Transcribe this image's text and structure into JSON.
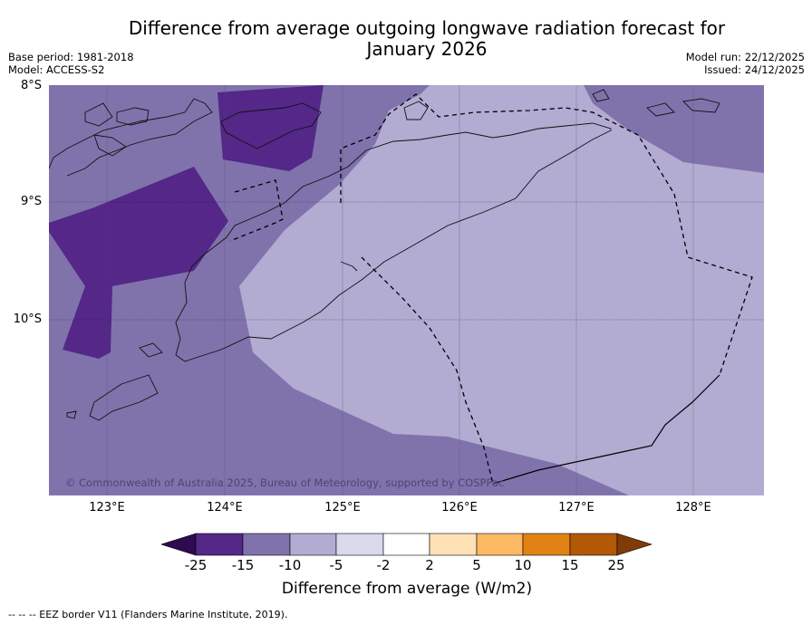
{
  "header": {
    "title_line1": "Difference from average outgoing longwave radiation forecast for",
    "title_line2": "January 2026",
    "base_period": "Base period: 1981-2018",
    "model": "Model: ACCESS-S2",
    "model_run": "Model run: 22/12/2025",
    "issued": "Issued: 24/12/2025"
  },
  "map": {
    "lat_labels": [
      "8°S",
      "9°S",
      "10°S"
    ],
    "lon_labels": [
      "123°E",
      "124°E",
      "125°E",
      "126°E",
      "127°E",
      "128°E"
    ],
    "copyright": "© Commonwealth of Australia 2025, Bureau of Meteorology, supported by COSPPac"
  },
  "colorbar": {
    "tick_labels": [
      "-25",
      "-15",
      "-10",
      "-5",
      "-2",
      "2",
      "5",
      "10",
      "15",
      "25"
    ],
    "colors": [
      "#2e0a4f",
      "#542788",
      "#8073ac",
      "#b2abd2",
      "#d8daeb",
      "#ffffff",
      "#fee0b6",
      "#fdb863",
      "#e08214",
      "#b35806",
      "#7f3b08"
    ],
    "title": "Difference from average (W/m2)"
  },
  "legend": {
    "eez_border": "--  --  -- EEZ border V11 (Flanders Marine Institute, 2019)."
  }
}
